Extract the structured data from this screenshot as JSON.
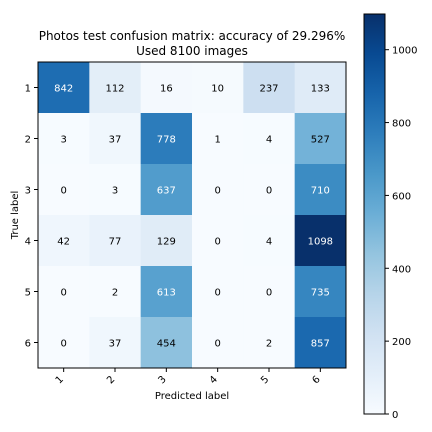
{
  "chart_data": {
    "type": "heatmap",
    "title": "Photos test confusion matrix: accuracy of 29.296%",
    "subtitle": "Used 8100 images",
    "xlabel": "Predicted label",
    "ylabel": "True label",
    "x_categories": [
      "1",
      "2",
      "3",
      "4",
      "5",
      "6"
    ],
    "y_categories": [
      "1",
      "2",
      "3",
      "4",
      "5",
      "6"
    ],
    "matrix": [
      [
        842,
        112,
        16,
        10,
        237,
        133
      ],
      [
        3,
        37,
        778,
        1,
        4,
        527
      ],
      [
        0,
        3,
        637,
        0,
        0,
        710
      ],
      [
        42,
        77,
        129,
        0,
        4,
        1098
      ],
      [
        0,
        2,
        613,
        0,
        0,
        735
      ],
      [
        0,
        37,
        454,
        0,
        2,
        857
      ]
    ],
    "colormap": "Blues",
    "color_low": "#f7fbff",
    "color_high": "#08306b",
    "colorbar": {
      "min": 0,
      "max": 1098,
      "ticks": [
        0,
        200,
        400,
        600,
        800,
        1000
      ]
    },
    "text_color_dark": "#000000",
    "text_color_light": "#ffffff"
  }
}
